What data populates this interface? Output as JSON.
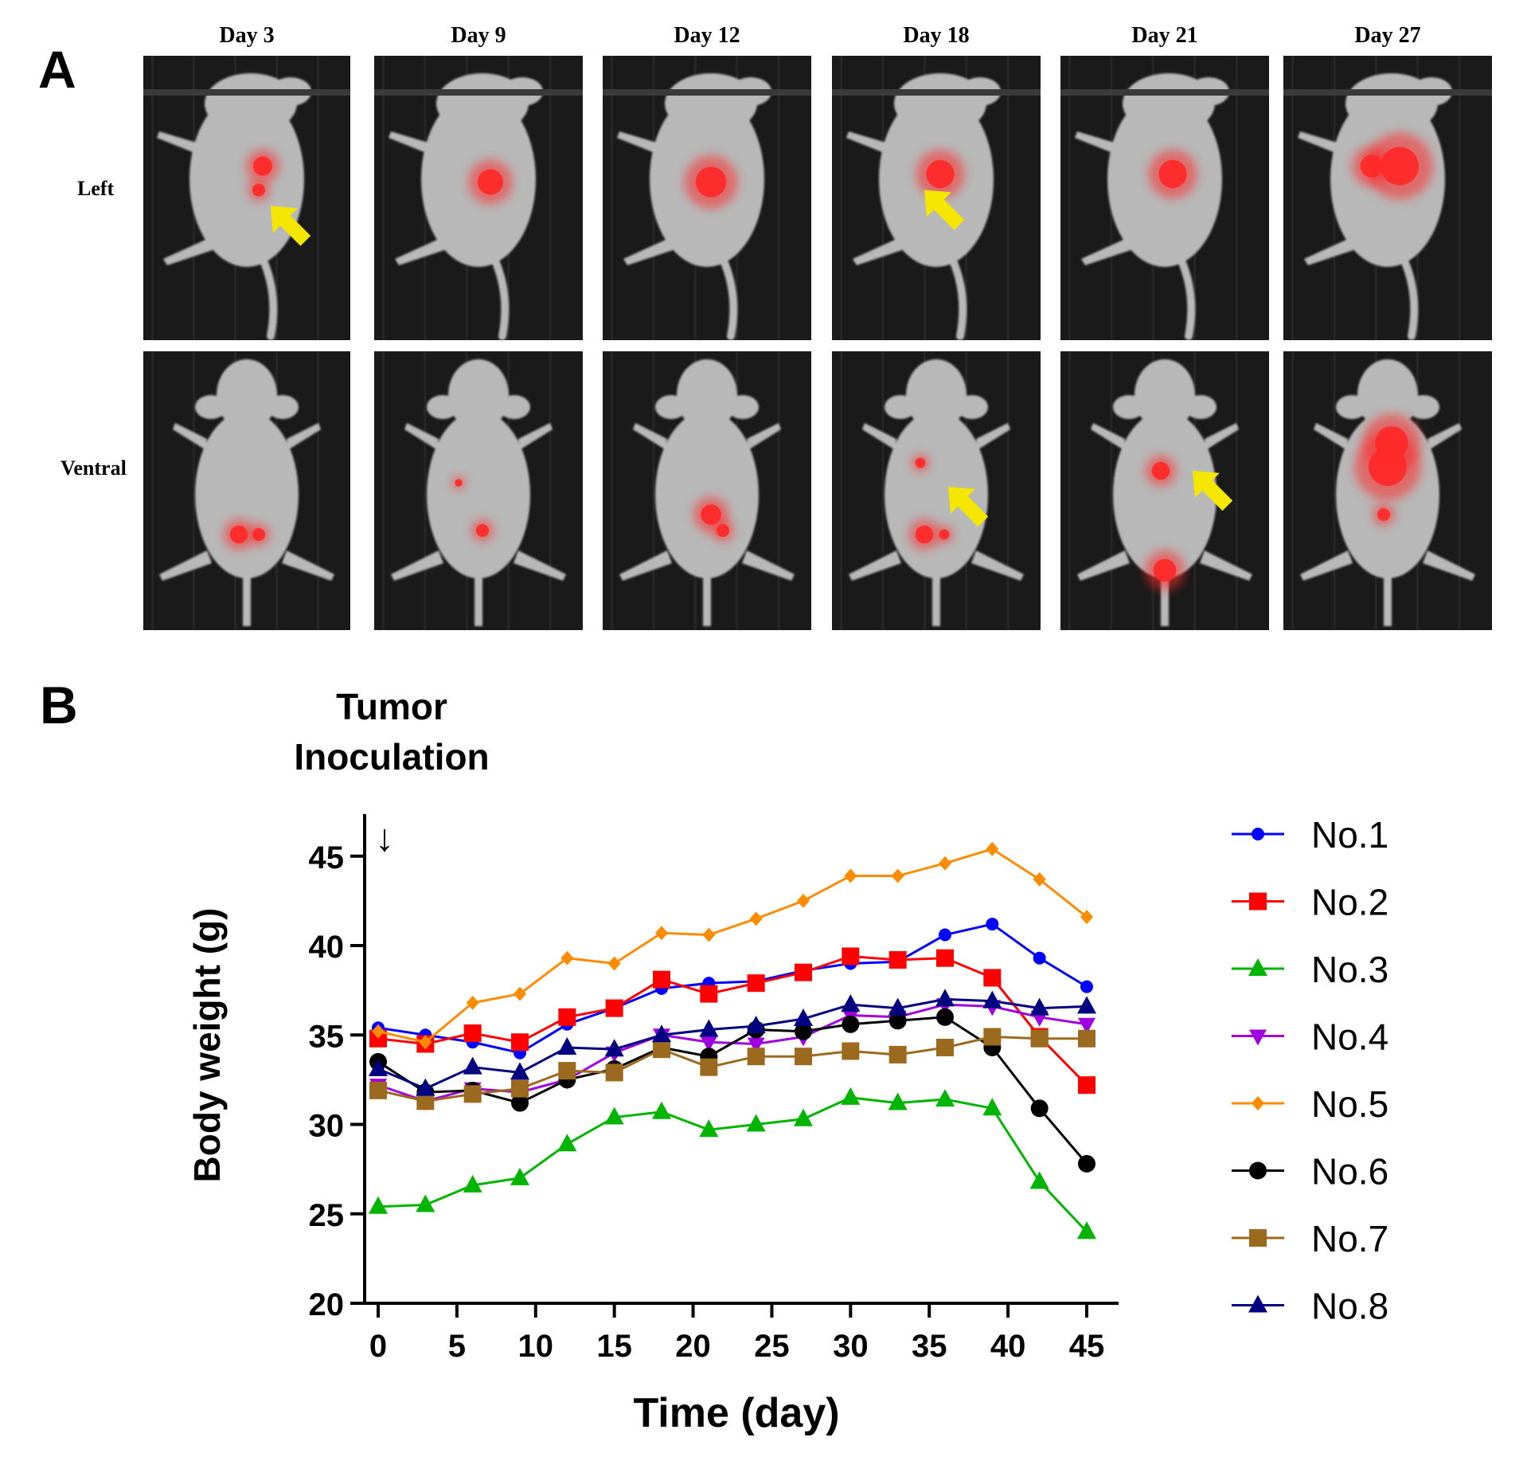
{
  "panel_a": {
    "label": "A",
    "days": [
      "Day 3",
      "Day 9",
      "Day 12",
      "Day 18",
      "Day 21",
      "Day 27"
    ],
    "views": [
      "Left",
      "Ventral"
    ],
    "colors": {
      "signal": "#ff2a2a",
      "arrow": "#f5e600",
      "background": "#1a1a1a",
      "mouse": "#b8b8b8"
    }
  },
  "panel_b": {
    "label": "B",
    "annotation_line1": "Tumor",
    "annotation_line2": "Inoculation",
    "arrow_glyph": "↓"
  },
  "chart_data": {
    "type": "line",
    "xlabel": "Time (day)",
    "ylabel": "Body weight (g)",
    "xlim": [
      0,
      45
    ],
    "ylim": [
      20,
      47
    ],
    "xticks": [
      0,
      5,
      10,
      15,
      20,
      25,
      30,
      35,
      40,
      45
    ],
    "yticks": [
      20,
      25,
      30,
      35,
      40,
      45
    ],
    "grid": false,
    "legend_position": "right",
    "x": [
      0,
      3,
      6,
      9,
      12,
      15,
      18,
      21,
      24,
      27,
      30,
      33,
      36,
      39,
      42,
      45
    ],
    "series": [
      {
        "name": "No.1",
        "color": "#0000ff",
        "marker": "circle",
        "values": [
          35.4,
          35.0,
          34.6,
          34.0,
          35.6,
          36.5,
          37.6,
          37.9,
          38.0,
          38.6,
          39.0,
          39.1,
          40.6,
          41.2,
          39.3,
          37.7
        ]
      },
      {
        "name": "No.2",
        "color": "#ff0000",
        "marker": "square",
        "values": [
          34.8,
          34.5,
          35.1,
          34.6,
          36.0,
          36.5,
          38.1,
          37.3,
          37.9,
          38.5,
          39.4,
          39.2,
          39.3,
          38.2,
          34.9,
          32.2
        ]
      },
      {
        "name": "No.3",
        "color": "#00b400",
        "marker": "triangle-up",
        "values": [
          25.4,
          25.5,
          26.6,
          27.0,
          28.9,
          30.4,
          30.7,
          29.7,
          30.0,
          30.3,
          31.5,
          31.2,
          31.4,
          30.9,
          26.8,
          24.0
        ]
      },
      {
        "name": "No.4",
        "color": "#a000e0",
        "marker": "triangle-down",
        "values": [
          32.2,
          31.3,
          32.0,
          31.8,
          32.5,
          34.0,
          35.0,
          34.6,
          34.5,
          34.9,
          36.1,
          36.0,
          36.7,
          36.6,
          36.0,
          35.6
        ]
      },
      {
        "name": "No.5",
        "color": "#ff8c00",
        "marker": "diamond",
        "values": [
          35.2,
          34.6,
          36.8,
          37.3,
          39.3,
          39.0,
          40.7,
          40.6,
          41.5,
          42.5,
          43.9,
          43.9,
          44.6,
          45.4,
          43.7,
          41.6
        ]
      },
      {
        "name": "No.6",
        "color": "#000000",
        "marker": "circle",
        "values": [
          33.5,
          31.8,
          31.9,
          31.2,
          32.5,
          33.1,
          34.3,
          33.8,
          35.3,
          35.2,
          35.6,
          35.8,
          36.0,
          34.3,
          30.9,
          27.8
        ]
      },
      {
        "name": "No.7",
        "color": "#9b6a1e",
        "marker": "square",
        "values": [
          31.9,
          31.3,
          31.7,
          32.0,
          33.0,
          32.9,
          34.2,
          33.2,
          33.8,
          33.8,
          34.1,
          33.9,
          34.3,
          34.9,
          34.8,
          34.8
        ]
      },
      {
        "name": "No.8",
        "color": "#000080",
        "marker": "triangle-up",
        "values": [
          33.1,
          32.0,
          33.2,
          32.9,
          34.3,
          34.2,
          35.0,
          35.3,
          35.5,
          35.9,
          36.7,
          36.5,
          37.0,
          36.9,
          36.5,
          36.6
        ]
      }
    ]
  }
}
